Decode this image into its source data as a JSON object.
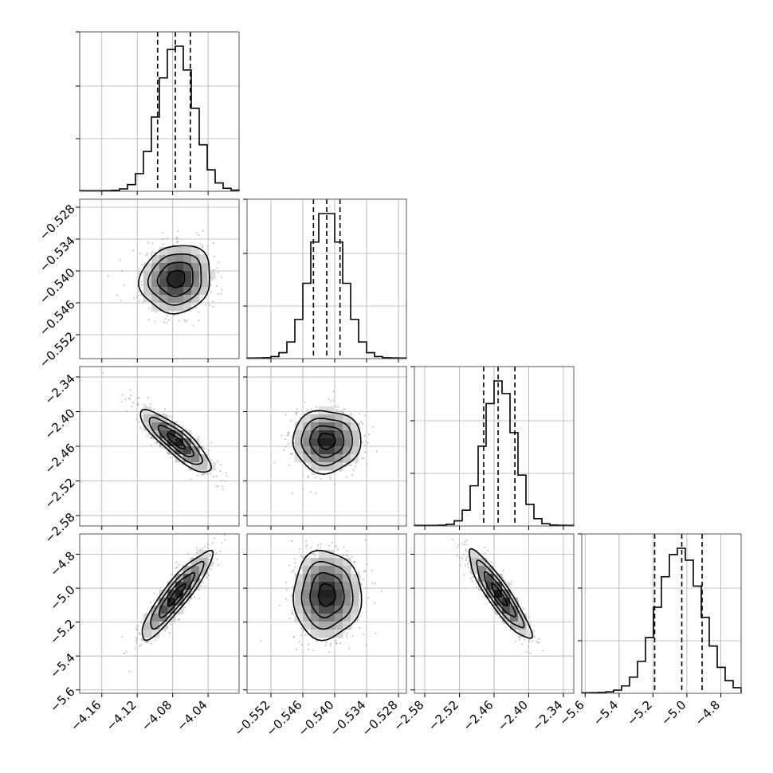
{
  "chart_data": {
    "type": "corner",
    "grid": true,
    "colors": {
      "ink": "#000000",
      "grid": "#b0b0b0",
      "frame": "#555555",
      "scatter": "#9a9a9a"
    },
    "parameters": [
      {
        "range": [
          -4.185,
          -4.005
        ],
        "ticks": [
          -4.16,
          -4.12,
          -4.08,
          -4.04
        ],
        "tick_labels": [
          "−4.16",
          "−4.12",
          "−4.08",
          "−4.04"
        ],
        "mean": -4.076,
        "sigma": 0.02,
        "rho_with_previous": null,
        "quantiles": [
          -4.097,
          -4.077,
          -4.06
        ]
      },
      {
        "range": [
          -0.5565,
          -0.5265
        ],
        "ticks": [
          -0.552,
          -0.546,
          -0.54,
          -0.534,
          -0.528
        ],
        "tick_labels": [
          "−0.552",
          "−0.546",
          "−0.540",
          "−0.534",
          "−0.528"
        ],
        "mean": -0.5415,
        "sigma": 0.0032,
        "quantiles": [
          -0.544,
          -0.5415,
          -0.539
        ]
      },
      {
        "range": [
          -2.598,
          -2.322
        ],
        "ticks": [
          -2.58,
          -2.52,
          -2.46,
          -2.4,
          -2.34
        ],
        "tick_labels": [
          "−2.58",
          "−2.52",
          "−2.46",
          "−2.40",
          "−2.34"
        ],
        "mean": -2.451,
        "sigma": 0.027,
        "quantiles": [
          -2.478,
          -2.453,
          -2.424
        ]
      },
      {
        "range": [
          -5.62,
          -4.68
        ],
        "ticks": [
          -5.6,
          -5.4,
          -5.2,
          -5.0,
          -4.8
        ],
        "tick_labels": [
          "−5.6",
          "−5.4",
          "−5.2",
          "−5.0",
          "−4.8"
        ],
        "mean": -5.04,
        "sigma": 0.13,
        "quantiles": [
          -5.19,
          -5.03,
          -4.91
        ]
      }
    ],
    "correlations": [
      [
        1.0,
        0.1,
        -0.85,
        0.9
      ],
      [
        0.1,
        1.0,
        0.0,
        0.0
      ],
      [
        -0.85,
        0.0,
        1.0,
        -0.9
      ],
      [
        0.9,
        0.0,
        -0.9,
        1.0
      ]
    ],
    "contour_levels_sigma": [
      0.5,
      1.0,
      1.5,
      2.0
    ],
    "histogram_bins": 20
  }
}
